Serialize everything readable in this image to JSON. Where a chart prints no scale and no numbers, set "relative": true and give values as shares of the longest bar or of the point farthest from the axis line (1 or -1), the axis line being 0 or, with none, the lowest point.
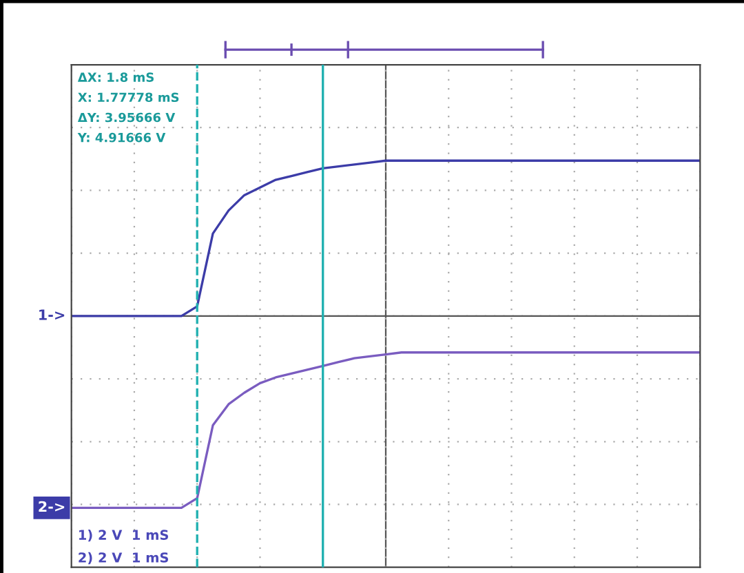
{
  "chart_data": {
    "type": "line",
    "relative": true,
    "categories": [
      null,
      null,
      null,
      null,
      null,
      null,
      null,
      null,
      null,
      null,
      null,
      null,
      null,
      null,
      null,
      null,
      null,
      null,
      null,
      null,
      null,
      null,
      null,
      null,
      null,
      null,
      null,
      null,
      null,
      null,
      null,
      null,
      null,
      null,
      null,
      null,
      null,
      null,
      null,
      null,
      null
    ],
    "series": [
      {
        "color": "#3c3ca8",
        "values": [
          0,
          0,
          0,
          0,
          0,
          0,
          0,
          0,
          0.05,
          0.43,
          0.55,
          0.63,
          0.67,
          0.71,
          0.73,
          0.75,
          0.77,
          0.78,
          0.79,
          0.8,
          0.81,
          0.81,
          0.81,
          0.81,
          0.81,
          0.81,
          0.81,
          0.81,
          0.81,
          0.81,
          0.81,
          0.81,
          0.81,
          0.81,
          0.81,
          0.81,
          0.81,
          0.81,
          0.81,
          0.81,
          0.81
        ]
      },
      {
        "color": "#7a5cc0",
        "values": [
          -1,
          -1,
          -1,
          -1,
          -1,
          -1,
          -1,
          -1,
          -0.95,
          -0.57,
          -0.46,
          -0.4,
          -0.35,
          -0.32,
          -0.3,
          -0.28,
          -0.26,
          -0.24,
          -0.22,
          -0.21,
          -0.2,
          -0.19,
          -0.19,
          -0.19,
          -0.19,
          -0.19,
          -0.19,
          -0.19,
          -0.19,
          -0.19,
          -0.19,
          -0.19,
          -0.19,
          -0.19,
          -0.19,
          -0.19,
          -0.19,
          -0.19,
          -0.19,
          -0.19,
          -0.19
        ]
      }
    ],
    "grid": true,
    "line_style": "solid",
    "marker": "none",
    "annotations": [
      "ΔX: 1.8 mS",
      "X: 1.77778 mS",
      "ΔY: 3.95666 V",
      "Y: 4.91666 V",
      "1) 2 V  1 mS",
      "2) 2 V  1 mS",
      "1->",
      "2->"
    ]
  }
}
